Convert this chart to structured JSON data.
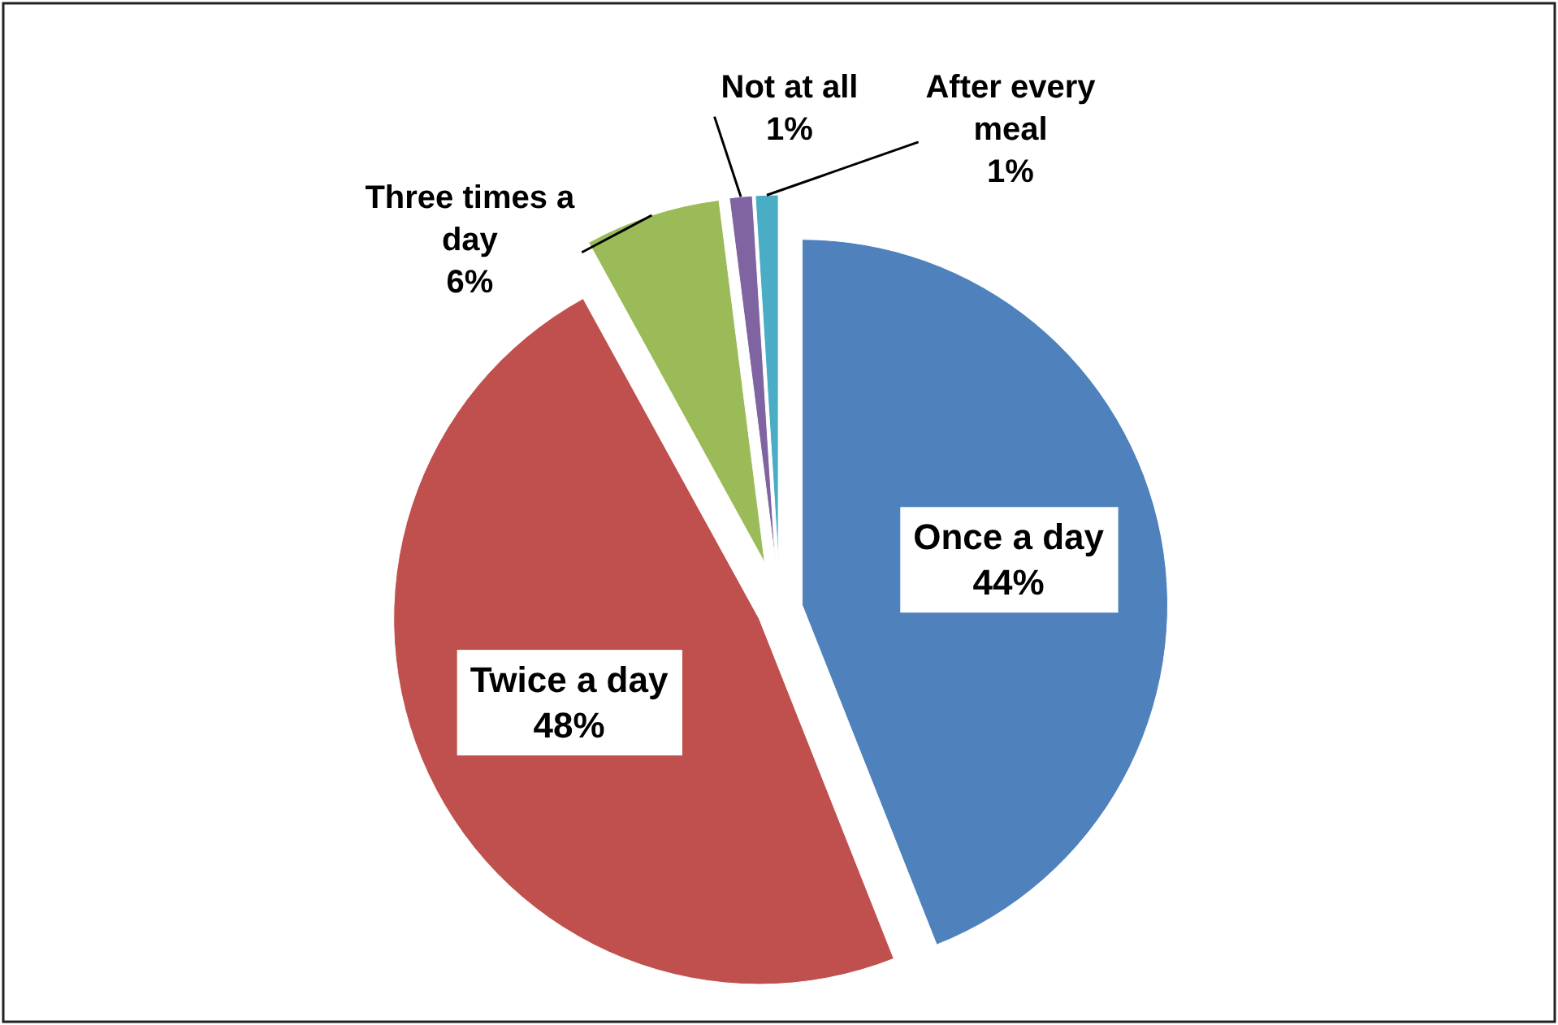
{
  "chart_data": {
    "type": "pie",
    "categories": [
      "Once a day",
      "Twice a day",
      "Three times a day",
      "Not at all",
      "After every meal"
    ],
    "values": [
      44,
      48,
      6,
      1,
      1
    ],
    "colors": [
      "#4f81bd",
      "#c0504d",
      "#9bbb59",
      "#8064a2",
      "#4bacc6"
    ],
    "value_labels": [
      "44%",
      "48%",
      "6%",
      "1%",
      "1%"
    ]
  }
}
